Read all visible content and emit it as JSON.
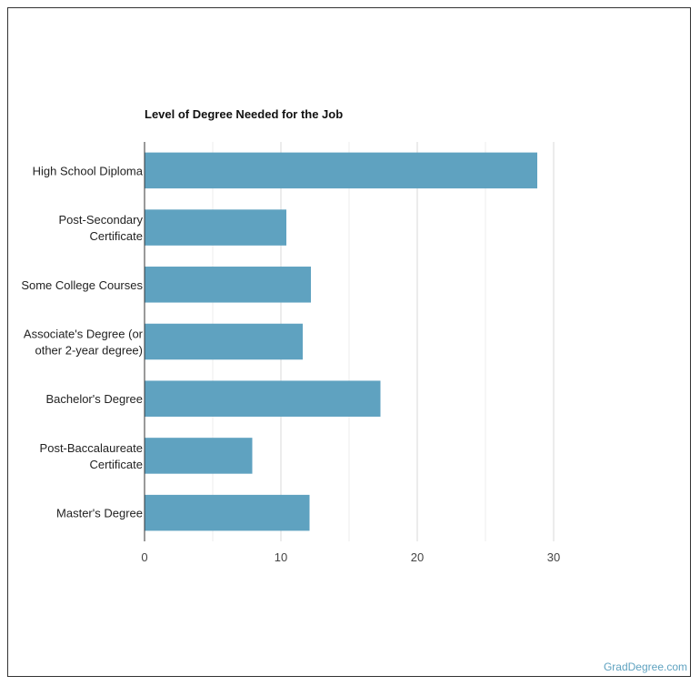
{
  "chart_data": {
    "type": "bar",
    "orientation": "horizontal",
    "title": "Level of Degree Needed for the Job",
    "categories": [
      [
        "High School Diploma"
      ],
      [
        "Post-Secondary",
        "Certificate"
      ],
      [
        "Some College Courses"
      ],
      [
        "Associate's Degree (or",
        "other 2-year degree)"
      ],
      [
        "Bachelor's Degree"
      ],
      [
        "Post-Baccalaureate",
        "Certificate"
      ],
      [
        "Master's Degree"
      ]
    ],
    "values": [
      28.8,
      10.4,
      12.2,
      11.6,
      17.3,
      7.9,
      12.1
    ],
    "xlim": [
      0,
      30
    ],
    "xticks": [
      0,
      10,
      20,
      30
    ],
    "grid": true,
    "bar_color": "#5fa2c0"
  },
  "source": "GradDegree.com"
}
